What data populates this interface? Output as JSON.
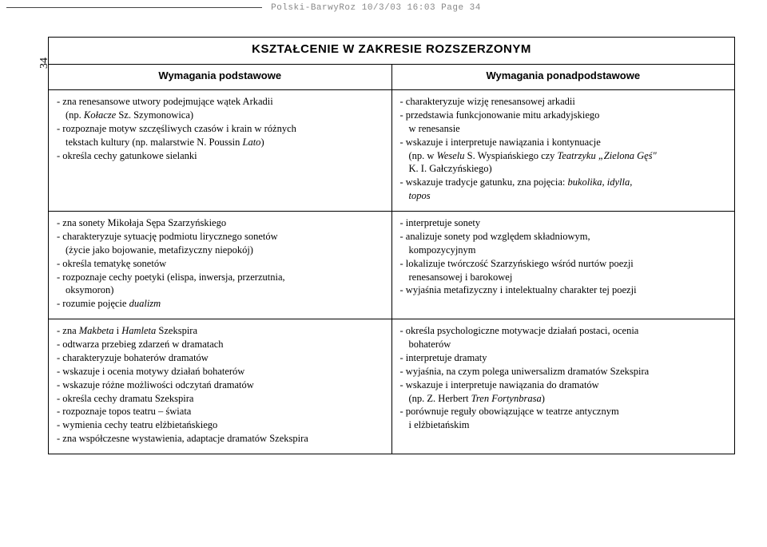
{
  "print_header": "Polski-BarwyRoz  10/3/03  16:03  Page 34",
  "page_number": "34",
  "table": {
    "title": "KSZTAŁCENIE W ZAKRESIE ROZSZERZONYM",
    "col1_header": "Wymagania podstawowe",
    "col2_header": "Wymagania ponadpodstawowe",
    "rows": [
      {
        "left": [
          "- zna renesansowe utwory podejmujące wątek Arkadii",
          "  (np. <i>Kołacze</i> Sz. Szymonowica)",
          "- rozpoznaje motyw szczęśliwych czasów i krain w różnych",
          "  tekstach kultury (np. malarstwie N. Poussin <i>Lato</i>)",
          "- określa cechy gatunkowe sielanki"
        ],
        "right": [
          "- charakteryzuje wizję renesansowej arkadii",
          "- przedstawia funkcjonowanie mitu arkadyjskiego",
          "  w renesansie",
          "- wskazuje i interpretuje nawiązania i kontynuacje",
          "  (np. w <i>Weselu</i> S. Wyspiańskiego czy <i>Teatrzyku „Zielona Gęś\"</i>",
          "  K. I. Gałczyńskiego)",
          "- wskazuje tradycje gatunku, zna pojęcia: <i>bukolika, idylla,",
          "  topos</i>"
        ]
      },
      {
        "left": [
          "- zna sonety Mikołaja Sępa Szarzyńskiego",
          "- charakteryzuje sytuację podmiotu lirycznego sonetów",
          "  (życie jako bojowanie, metafizyczny niepokój)",
          "- określa tematykę sonetów",
          "- rozpoznaje cechy poetyki (elispa, inwersja, przerzutnia,",
          "  oksymoron)",
          "- rozumie pojęcie <i>dualizm</i>"
        ],
        "right": [
          "- interpretuje sonety",
          "- analizuje sonety pod względem składniowym,",
          "  kompozycyjnym",
          "- lokalizuje twórczość Szarzyńskiego wśród nurtów poezji",
          "  renesansowej i barokowej",
          "- wyjaśnia metafizyczny i intelektualny charakter tej poezji"
        ]
      },
      {
        "left": [
          "- zna <i>Makbeta</i> i <i>Hamleta</i> Szekspira",
          "- odtwarza przebieg zdarzeń w dramatach",
          "- charakteryzuje bohaterów dramatów",
          "- wskazuje i ocenia motywy działań bohaterów",
          "- wskazuje różne możliwości odczytań dramatów",
          "- określa cechy dramatu Szekspira",
          "- rozpoznaje topos teatru – świata",
          "- wymienia cechy teatru elżbietańskiego",
          "- zna współczesne wystawienia, adaptacje dramatów Szekspira"
        ],
        "right": [
          "- określa psychologiczne motywacje działań postaci, ocenia",
          "  bohaterów",
          "- interpretuje dramaty",
          "- wyjaśnia, na czym polega uniwersalizm dramatów Szekspira",
          "- wskazuje i interpretuje nawiązania do dramatów",
          "  (np. Z. Herbert <i>Tren Fortynbrasa</i>)",
          "- porównuje reguły obowiązujące w teatrze antycznym",
          "  i elżbietańskim"
        ]
      }
    ]
  }
}
